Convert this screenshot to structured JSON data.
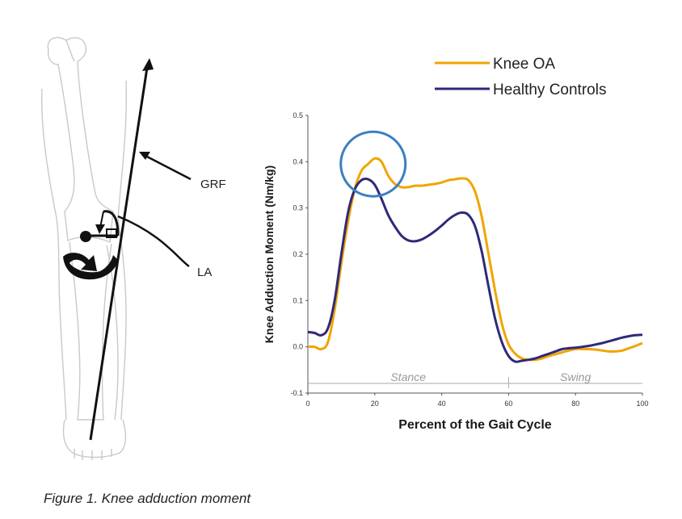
{
  "caption": "Figure 1. Knee adduction moment",
  "illustration": {
    "labels": {
      "grf": "GRF",
      "la": "LA"
    }
  },
  "colors": {
    "knee_oa": "#f0a500",
    "healthy_controls": "#2e2a78",
    "highlight_circle": "#3a7fc1"
  },
  "chart_data": {
    "type": "line",
    "xlabel": "Percent of the Gait Cycle",
    "ylabel": "Knee Adduction Moment (Nm/kg)",
    "xlim": [
      0,
      100
    ],
    "ylim": [
      -0.1,
      0.5
    ],
    "xticks": [
      0,
      20,
      40,
      60,
      80,
      100
    ],
    "yticks": [
      -0.1,
      0.0,
      0.1,
      0.2,
      0.3,
      0.4,
      0.5
    ],
    "ytick_labels": [
      "-0.1",
      "0.0",
      "0.1",
      "0.2",
      "0.3",
      "0.4",
      "0.5"
    ],
    "grid": false,
    "legend": "top",
    "phases": [
      {
        "label": "Stance",
        "from": 0,
        "to": 60
      },
      {
        "label": "Swing",
        "from": 60,
        "to": 100
      }
    ],
    "highlight": {
      "x": 19.5,
      "y": 0.395,
      "note": "first peak"
    },
    "series": [
      {
        "name": "Knee OA",
        "color": "#f0a500",
        "x": [
          0,
          2,
          4,
          6,
          8,
          10,
          12,
          14,
          16,
          18,
          20,
          22,
          24,
          26,
          28,
          30,
          32,
          34,
          36,
          38,
          40,
          42,
          44,
          46,
          48,
          50,
          52,
          54,
          56,
          58,
          60,
          62,
          64,
          66,
          68,
          70,
          72,
          74,
          76,
          78,
          80,
          82,
          84,
          86,
          88,
          90,
          92,
          94,
          96,
          98,
          100
        ],
        "y": [
          0.0,
          0.0,
          -0.005,
          0.01,
          0.08,
          0.18,
          0.27,
          0.34,
          0.38,
          0.395,
          0.407,
          0.4,
          0.37,
          0.352,
          0.345,
          0.345,
          0.348,
          0.348,
          0.35,
          0.352,
          0.355,
          0.36,
          0.362,
          0.364,
          0.36,
          0.335,
          0.28,
          0.2,
          0.12,
          0.05,
          0.005,
          -0.015,
          -0.025,
          -0.028,
          -0.028,
          -0.025,
          -0.02,
          -0.016,
          -0.012,
          -0.008,
          -0.005,
          -0.005,
          -0.005,
          -0.006,
          -0.008,
          -0.01,
          -0.01,
          -0.008,
          -0.003,
          0.002,
          0.008
        ]
      },
      {
        "name": "Healthy Controls",
        "color": "#2e2a78",
        "x": [
          0,
          2,
          4,
          6,
          8,
          10,
          12,
          14,
          16,
          18,
          20,
          22,
          24,
          26,
          28,
          30,
          32,
          34,
          36,
          38,
          40,
          42,
          44,
          46,
          48,
          50,
          52,
          54,
          56,
          58,
          60,
          62,
          64,
          66,
          68,
          70,
          72,
          74,
          76,
          78,
          80,
          82,
          84,
          86,
          88,
          90,
          92,
          94,
          96,
          98,
          100
        ],
        "y": [
          0.032,
          0.03,
          0.025,
          0.04,
          0.1,
          0.2,
          0.29,
          0.34,
          0.36,
          0.362,
          0.35,
          0.32,
          0.285,
          0.26,
          0.24,
          0.23,
          0.228,
          0.232,
          0.24,
          0.25,
          0.262,
          0.275,
          0.285,
          0.29,
          0.285,
          0.26,
          0.205,
          0.13,
          0.06,
          0.01,
          -0.02,
          -0.032,
          -0.03,
          -0.028,
          -0.025,
          -0.02,
          -0.015,
          -0.01,
          -0.005,
          -0.003,
          -0.002,
          0.0,
          0.002,
          0.005,
          0.008,
          0.012,
          0.016,
          0.02,
          0.023,
          0.025,
          0.026
        ]
      }
    ]
  }
}
